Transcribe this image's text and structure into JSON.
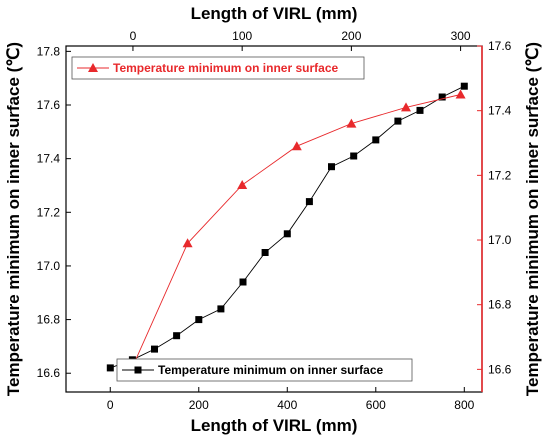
{
  "chart_data": {
    "type": "line",
    "x_bottom": {
      "label": "Length of VIRL (mm)",
      "range": [
        -100,
        840
      ],
      "ticks": [
        0,
        200,
        400,
        600,
        800
      ]
    },
    "x_top": {
      "label": "Length of VIRL (mm)",
      "range": [
        -61.3,
        319.6
      ],
      "ticks": [
        0,
        100,
        200,
        300
      ]
    },
    "y_left": {
      "label": "Temperature minimum on inner surface (℃)",
      "range": [
        16.53,
        17.82
      ],
      "ticks": [
        16.6,
        16.8,
        17.0,
        17.2,
        17.4,
        17.6,
        17.8
      ],
      "tick_labels": [
        "16.6",
        "16.8",
        "17.0",
        "17.2",
        "17.4",
        "17.6",
        "17.8"
      ]
    },
    "y_right": {
      "label": "Temperature minimum on inner surface (℃)",
      "range": [
        16.53,
        17.6
      ],
      "ticks": [
        16.6,
        16.8,
        17.0,
        17.2,
        17.4,
        17.6
      ],
      "tick_labels": [
        "16.6",
        "16.8",
        "17.0",
        "17.2",
        "17.4",
        "17.6"
      ],
      "color": "#e8292c"
    },
    "series": [
      {
        "name": "Temperature minimum on inner surface",
        "axes": "bottom-left",
        "marker": "square",
        "color": "#000000",
        "x": [
          0,
          50,
          100,
          150,
          200,
          250,
          300,
          350,
          400,
          450,
          500,
          550,
          600,
          650,
          700,
          750,
          800
        ],
        "y": [
          16.62,
          16.65,
          16.69,
          16.74,
          16.8,
          16.84,
          16.94,
          17.05,
          17.12,
          17.24,
          17.37,
          17.41,
          17.47,
          17.54,
          17.58,
          17.63,
          17.67
        ]
      },
      {
        "name": "Temperature minimum on inner surface",
        "axes": "top-right",
        "marker": "triangle",
        "color": "#e8292c",
        "x": [
          0,
          50,
          100,
          150,
          200,
          250,
          300
        ],
        "y": [
          16.61,
          16.99,
          17.17,
          17.29,
          17.36,
          17.41,
          17.45
        ]
      }
    ],
    "legends": [
      {
        "series": 1,
        "placement": "top-left",
        "color": "#e8292c"
      },
      {
        "series": 0,
        "placement": "bottom-right",
        "color": "#000000"
      }
    ],
    "grid": false
  }
}
